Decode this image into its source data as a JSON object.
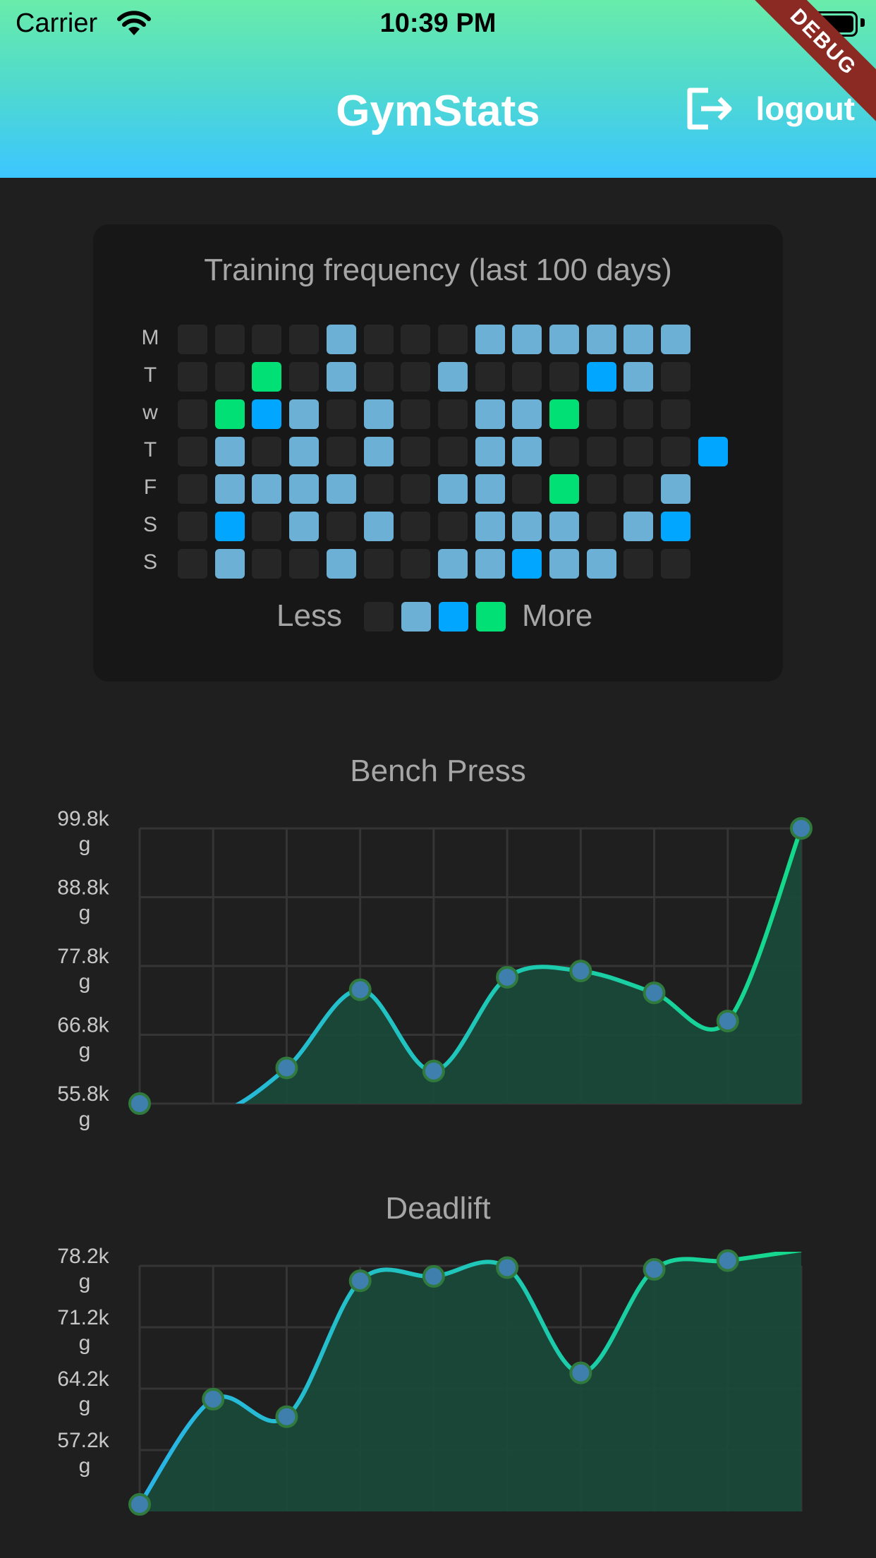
{
  "status_bar": {
    "carrier": "Carrier",
    "time": "10:39 PM",
    "icons": [
      "wifi-icon",
      "battery-icon"
    ]
  },
  "app_bar": {
    "title": "GymStats",
    "logout_label": "logout",
    "logout_icon": "logout-icon",
    "debug_banner": "DEBUG",
    "gradient": [
      "#69ecaa",
      "#3cc6ff"
    ]
  },
  "heatmap": {
    "title": "Training frequency (last 100 days)",
    "day_labels": [
      "M",
      "T",
      "w",
      "T",
      "F",
      "S",
      "S"
    ],
    "levels": [
      [
        0,
        0,
        0,
        0,
        1,
        0,
        0,
        0,
        1,
        1,
        1,
        1,
        1,
        1,
        null
      ],
      [
        0,
        0,
        3,
        0,
        1,
        0,
        0,
        1,
        0,
        0,
        0,
        2,
        1,
        0,
        null
      ],
      [
        0,
        3,
        2,
        1,
        0,
        1,
        0,
        0,
        1,
        1,
        3,
        0,
        0,
        0,
        null
      ],
      [
        0,
        1,
        0,
        1,
        0,
        1,
        0,
        0,
        1,
        1,
        0,
        0,
        0,
        0,
        2
      ],
      [
        0,
        1,
        1,
        1,
        1,
        0,
        0,
        1,
        1,
        0,
        3,
        0,
        0,
        1,
        null
      ],
      [
        0,
        2,
        0,
        1,
        0,
        1,
        0,
        0,
        1,
        1,
        1,
        0,
        1,
        2,
        null
      ],
      [
        0,
        1,
        0,
        0,
        1,
        0,
        0,
        1,
        1,
        2,
        1,
        1,
        0,
        0,
        null
      ]
    ],
    "level_colors": [
      "#262626",
      "#6db0d6",
      "#00a6ff",
      "#00e075"
    ],
    "legend": {
      "less": "Less",
      "more": "More"
    }
  },
  "chart_data": [
    {
      "type": "line",
      "title": "Bench Press",
      "y_tick_labels": [
        "99.8kg",
        "88.8kg",
        "77.8kg",
        "66.8kg",
        "55.8kg"
      ],
      "y_ticks": [
        99.8,
        88.8,
        77.8,
        66.8,
        55.8
      ],
      "ylim": [
        55.8,
        99.8
      ],
      "x": [
        1,
        2,
        3,
        4,
        5,
        6,
        7,
        8,
        9,
        10
      ],
      "values": [
        55.8,
        54.0,
        61.5,
        74.0,
        61.0,
        76.0,
        77.0,
        73.5,
        69.0,
        99.8
      ],
      "grid": true,
      "line_colors": [
        "#2ab4e6",
        "#14d98a"
      ]
    },
    {
      "type": "line",
      "title": "Deadlift",
      "y_tick_labels": [
        "78.2kg",
        "71.2kg",
        "64.2kg",
        "57.2kg"
      ],
      "y_ticks": [
        78.2,
        71.2,
        64.2,
        57.2
      ],
      "ylim": [
        50.2,
        78.2
      ],
      "x": [
        1,
        2,
        3,
        4,
        5,
        6,
        7,
        8,
        9,
        10
      ],
      "values": [
        51.0,
        63.0,
        61.0,
        76.5,
        77.0,
        78.0,
        66.0,
        77.8,
        78.8,
        80.0
      ],
      "grid": true,
      "line_colors": [
        "#2ab4e6",
        "#14d98a"
      ]
    }
  ]
}
